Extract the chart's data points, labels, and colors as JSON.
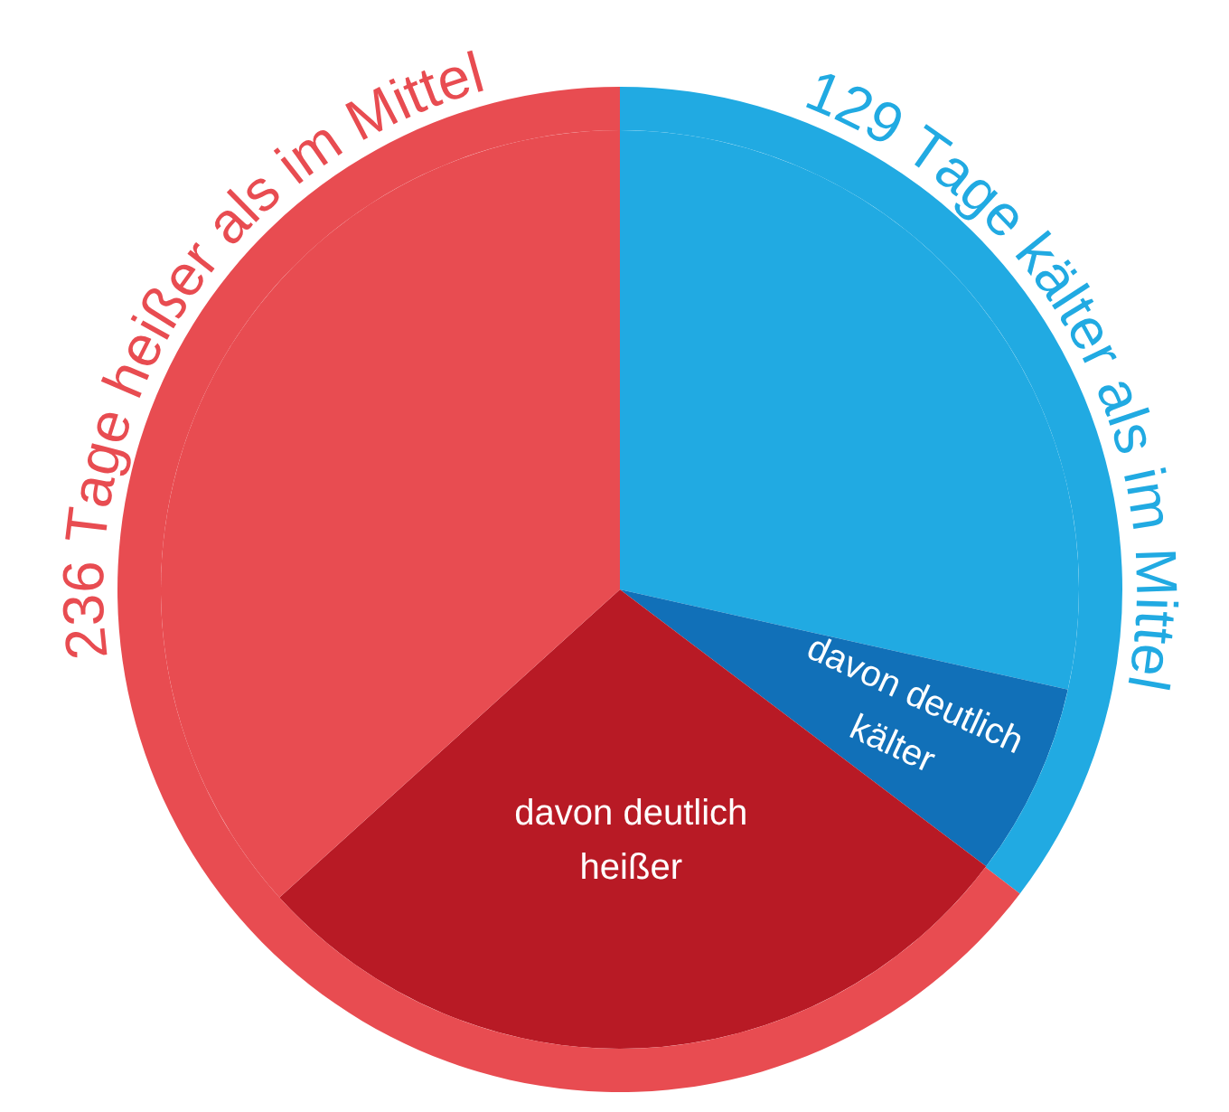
{
  "chart_data": {
    "type": "pie",
    "categories": [
      "129 Tage kälter als im Mittel",
      "davon deutlich kälter",
      "davon deutlich heißer",
      "236 Tage heißer als im Mittel"
    ],
    "series": [
      {
        "values": [
          28.5,
          6.8,
          28.0,
          36.7
        ],
        "colors": [
          "#21aae2",
          "#1170b8",
          "#b81a25",
          "#e84c51"
        ]
      },
      {
        "values": [
          129,
          null,
          null,
          236
        ],
        "colors": [
          "#21aae2",
          "#1170b8",
          "#b81a25",
          "#e84c51"
        ]
      }
    ],
    "legend": false
  }
}
